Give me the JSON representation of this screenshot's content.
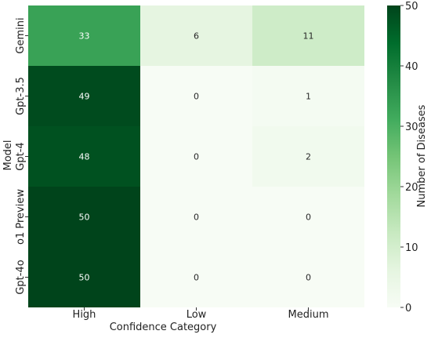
{
  "chart_data": {
    "type": "heatmap",
    "title": "",
    "xlabel": "Confidence Category",
    "ylabel": "Model",
    "x_categories": [
      "High",
      "Low",
      "Medium"
    ],
    "y_categories": [
      "Gemini",
      "Gpt-3.5",
      "Gpt-4",
      "o1 Preview",
      "Gpt-4o"
    ],
    "values": [
      [
        33,
        6,
        11
      ],
      [
        49,
        0,
        1
      ],
      [
        48,
        0,
        2
      ],
      [
        50,
        0,
        0
      ],
      [
        50,
        0,
        0
      ]
    ],
    "colorbar": {
      "label": "Number of Diseases",
      "range": [
        0,
        50
      ],
      "ticks": [
        0,
        10,
        20,
        30,
        40,
        50
      ],
      "colormap": "Greens",
      "low_color": "#f7fcf5",
      "high_color": "#00441b"
    }
  }
}
